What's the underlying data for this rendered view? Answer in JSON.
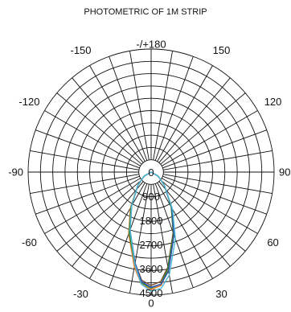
{
  "chart_data": {
    "type": "polar",
    "title": "PHOTOMETRIC OF 1M  STRIP",
    "angle_labels": [
      {
        "angle": 180,
        "text": "-/+180"
      },
      {
        "angle": -150,
        "text": "-150"
      },
      {
        "angle": 150,
        "text": "150"
      },
      {
        "angle": -120,
        "text": "-120"
      },
      {
        "angle": 120,
        "text": "120"
      },
      {
        "angle": -90,
        "text": "-90"
      },
      {
        "angle": 90,
        "text": "90"
      },
      {
        "angle": -60,
        "text": "-60"
      },
      {
        "angle": 60,
        "text": "60"
      },
      {
        "angle": -30,
        "text": "-30"
      },
      {
        "angle": 30,
        "text": "30"
      },
      {
        "angle": 0,
        "text": "0"
      }
    ],
    "radial_ticks": [
      0,
      900,
      1800,
      2700,
      3600,
      4500
    ],
    "radial_tick_labels": [
      "0",
      "900",
      "1800",
      "2700",
      "3600",
      "4500"
    ],
    "r_max": 4500,
    "grid": true,
    "series": [
      {
        "color": "#7a4a2a",
        "angles": [
          -90,
          -60,
          -45,
          -30,
          -20,
          -10,
          -5,
          0,
          5,
          10,
          20,
          30,
          45,
          60,
          90
        ],
        "values": [
          0,
          300,
          700,
          1500,
          2350,
          3450,
          4050,
          4230,
          4100,
          3600,
          2400,
          1500,
          700,
          300,
          0
        ]
      },
      {
        "color": "#e07a2a",
        "angles": [
          -90,
          -60,
          -45,
          -30,
          -20,
          -10,
          -5,
          0,
          5,
          10,
          20,
          30,
          45,
          60,
          90
        ],
        "values": [
          0,
          300,
          700,
          1550,
          2450,
          3600,
          4200,
          4380,
          4250,
          3700,
          2450,
          1550,
          700,
          300,
          0
        ]
      },
      {
        "color": "#2e8b3a",
        "angles": [
          -90,
          -60,
          -45,
          -30,
          -20,
          -10,
          -5,
          0,
          5,
          10,
          20,
          30,
          45,
          60,
          90
        ],
        "values": [
          0,
          300,
          700,
          1500,
          2400,
          3500,
          4150,
          4330,
          4200,
          3650,
          2450,
          1500,
          700,
          300,
          0
        ]
      },
      {
        "color": "#2a4fb0",
        "angles": [
          -90,
          -60,
          -45,
          -30,
          -20,
          -10,
          -5,
          0,
          5,
          10,
          20,
          30,
          45,
          60,
          90
        ],
        "values": [
          0,
          300,
          700,
          1450,
          2300,
          3450,
          4100,
          4300,
          4200,
          3750,
          2500,
          1550,
          700,
          300,
          0
        ]
      },
      {
        "color": "#4db8d8",
        "angles": [
          -90,
          -60,
          -45,
          -30,
          -20,
          -10,
          -5,
          0,
          5,
          10,
          20,
          30,
          45,
          60,
          90
        ],
        "values": [
          0,
          300,
          700,
          1450,
          2300,
          3500,
          4200,
          4450,
          4350,
          3900,
          2650,
          1600,
          700,
          300,
          0
        ]
      }
    ]
  }
}
